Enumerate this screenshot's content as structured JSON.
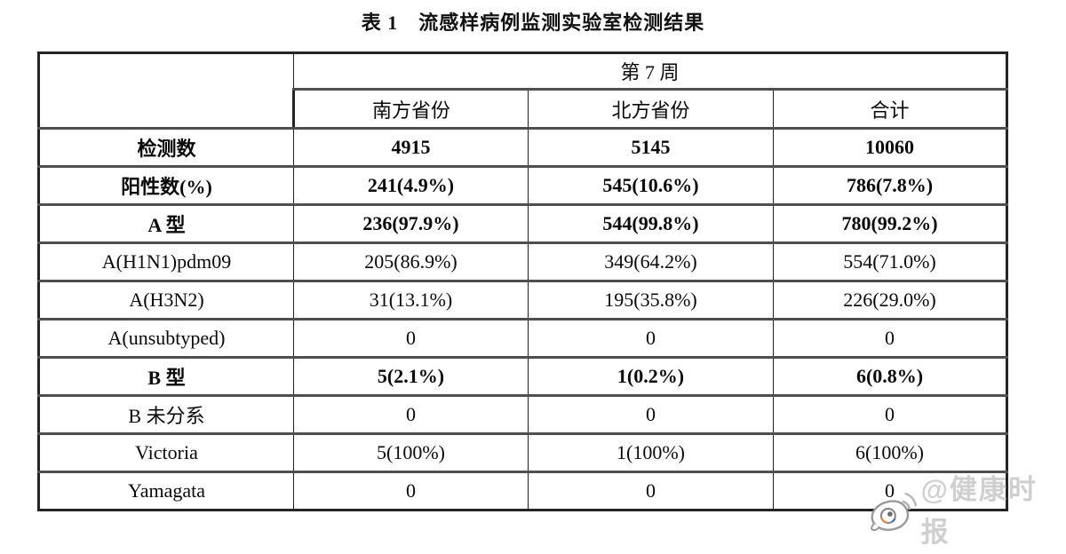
{
  "title": "表 1　流感样病例监测实验室检测结果",
  "table": {
    "week_header": "第 7 周",
    "column_headers": [
      "南方省份",
      "北方省份",
      "合计"
    ],
    "rows": [
      {
        "label": "检测数",
        "values": [
          "4915",
          "5145",
          "10060"
        ],
        "bold": true
      },
      {
        "label": "阳性数(%)",
        "values": [
          "241(4.9%)",
          "545(10.6%)",
          "786(7.8%)"
        ],
        "bold": true
      },
      {
        "label": "A 型",
        "values": [
          "236(97.9%)",
          "544(99.8%)",
          "780(99.2%)"
        ],
        "bold": true
      },
      {
        "label": "A(H1N1)pdm09",
        "values": [
          "205(86.9%)",
          "349(64.2%)",
          "554(71.0%)"
        ],
        "bold": false
      },
      {
        "label": "A(H3N2)",
        "values": [
          "31(13.1%)",
          "195(35.8%)",
          "226(29.0%)"
        ],
        "bold": false
      },
      {
        "label": "A(unsubtyped)",
        "values": [
          "0",
          "0",
          "0"
        ],
        "bold": false
      },
      {
        "label": "B 型",
        "values": [
          "5(2.1%)",
          "1(0.2%)",
          "6(0.8%)"
        ],
        "bold": true
      },
      {
        "label": "B 未分系",
        "values": [
          "0",
          "0",
          "0"
        ],
        "bold": false
      },
      {
        "label": "Victoria",
        "values": [
          "5(100%)",
          "1(100%)",
          "6(100%)"
        ],
        "bold": false
      },
      {
        "label": "Yamagata",
        "values": [
          "0",
          "0",
          "0"
        ],
        "bold": false
      }
    ]
  },
  "watermark": {
    "icon": "weibo-icon",
    "text": "@健康时报",
    "color": "#cfcfcf"
  }
}
